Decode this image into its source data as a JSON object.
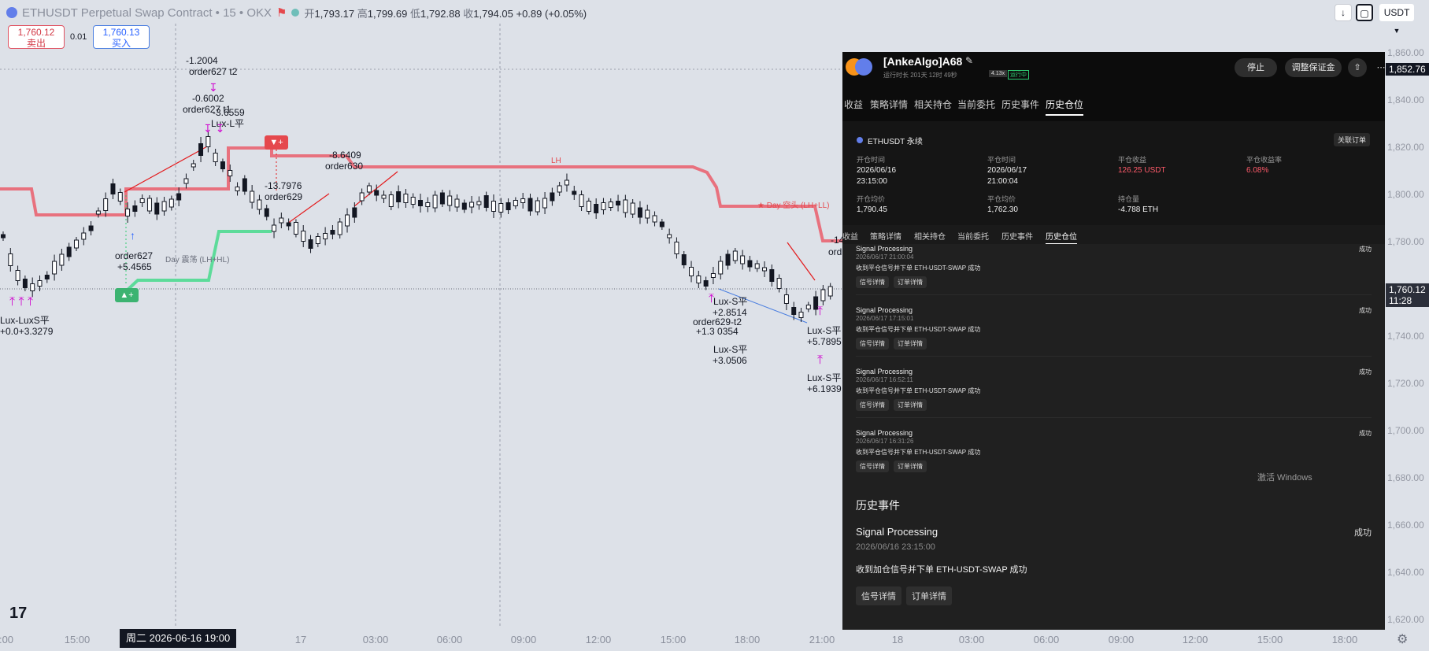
{
  "header": {
    "symbol": "ETHUSDT Perpetual Swap Contract • 15 • OKX",
    "open_k": "开",
    "open_v": "1,793.17",
    "high_k": "高",
    "high_v": "1,799.69",
    "low_k": "低",
    "low_v": "1,792.88",
    "close_k": "收",
    "close_v": "1,794.05",
    "change": "+0.89 (+0.05%)"
  },
  "trade": {
    "sell_price": "1,760.12",
    "sell_label": "卖出",
    "spread": "0.01",
    "buy_price": "1,760.13",
    "buy_label": "买入"
  },
  "top_right": {
    "currency": "USDT"
  },
  "price_axis": {
    "ticks": [
      "1,860.00",
      "1,840.00",
      "1,820.00",
      "1,800.00",
      "1,780.00",
      "1,740.00",
      "1,720.00",
      "1,700.00",
      "1,680.00",
      "1,660.00",
      "1,640.00",
      "1,620.00"
    ],
    "top_label": "1,852.76",
    "current_price": "1,760.12",
    "countdown": "11:28"
  },
  "time_axis": {
    "ticks": [
      ":00",
      "15:00",
      "17",
      "03:00",
      "06:00",
      "09:00",
      "12:00",
      "15:00",
      "18:00",
      "21:00",
      "18",
      "03:00",
      "06:00",
      "09:00",
      "12:00",
      "15:00",
      "18:00"
    ],
    "cursor": "周二  2026-06-16   19:00",
    "first_tick_left": "2026-06-16"
  },
  "annotations": {
    "a1": "-1.2004",
    "a2": "order627 t2",
    "a3": "-0.6002",
    "a4": "order627 t1",
    "a5": "-3.6559",
    "a6": "Lux-L平",
    "a7": "-13.7976",
    "a8": "order629",
    "a9": "-8.6409",
    "a10": "order630",
    "a11": "order627",
    "a12": "+5.4565",
    "a13": "Lux-S平",
    "a14": "+2.8514",
    "a15": "order629-t2",
    "a16": "+1.3 0354",
    "a17": "Lux-S平",
    "a18": "+3.0506",
    "a19": "Lux-S平",
    "a20": "+5.7895",
    "a21": "Lux-S平",
    "a22": "+6.1939",
    "a23": "Lux-LuxS平",
    "a24": "+0.0+3.3279",
    "lh": "LH",
    "day_bear": "★ Day 空头 (LH+LL)",
    "day_range": "Day 震荡 (LH+HL)",
    "partial": "-14",
    "partial2": "ord"
  },
  "panel": {
    "name": "[AnkeAlgo]A68",
    "runtime": "运行时长 201天 12时 49秒",
    "lev": "4.13x",
    "state": "运行中",
    "stop": "停止",
    "margin": "调整保证金",
    "tabs": [
      "收益",
      "策略详情",
      "相关持仓",
      "当前委托",
      "历史事件",
      "历史仓位"
    ],
    "card": {
      "symbol": "ETHUSDT 永续",
      "link": "关联订单",
      "open_time_l": "开仓时间",
      "open_time_v1": "2026/06/16",
      "open_time_v2": "23:15:00",
      "close_time_l": "平仓时间",
      "close_time_v1": "2026/06/17",
      "close_time_v2": "21:00:04",
      "pnl_l": "平仓收益",
      "pnl_v": "126.25 USDT",
      "rate_l": "平仓收益率",
      "rate_v": "6.08%",
      "open_avg_l": "开仓均价",
      "open_avg_v": "1,790.45",
      "close_avg_l": "平仓均价",
      "close_avg_v": "1,762.30",
      "hold_l": "持仓量",
      "hold_v": "-4.788 ETH"
    },
    "events": [
      {
        "title": "Signal Processing",
        "date": "2026/06/17 21:00:04",
        "msg": "收到平仓信号并下单 ETH-USDT-SWAP 成功",
        "status": "成功"
      },
      {
        "title": "Signal Processing",
        "date": "2026/06/17 17:15:01",
        "msg": "收到平仓信号并下单 ETH-USDT-SWAP 成功",
        "status": "成功"
      },
      {
        "title": "Signal Processing",
        "date": "2026/06/17 16:52:11",
        "msg": "收到平仓信号并下单 ETH-USDT-SWAP 成功",
        "status": "成功"
      },
      {
        "title": "Signal Processing",
        "date": "2026/06/17 16:31:26",
        "msg": "收到平仓信号并下单 ETH-USDT-SWAP 成功",
        "status": "成功"
      }
    ],
    "chip_signal": "信号详情",
    "chip_order": "订单详情",
    "watermark": "激活 Windows",
    "hist_title": "历史事件",
    "big_event": {
      "title": "Signal Processing",
      "date": "2026/06/16 23:15:00",
      "msg": "收到加仓信号并下单 ETH-USDT-SWAP 成功",
      "status": "成功"
    }
  },
  "colors": {
    "resistance": "#e8717e",
    "support": "#5ddb9a",
    "marker": "#d010d0",
    "panel_bg": "#202020"
  }
}
